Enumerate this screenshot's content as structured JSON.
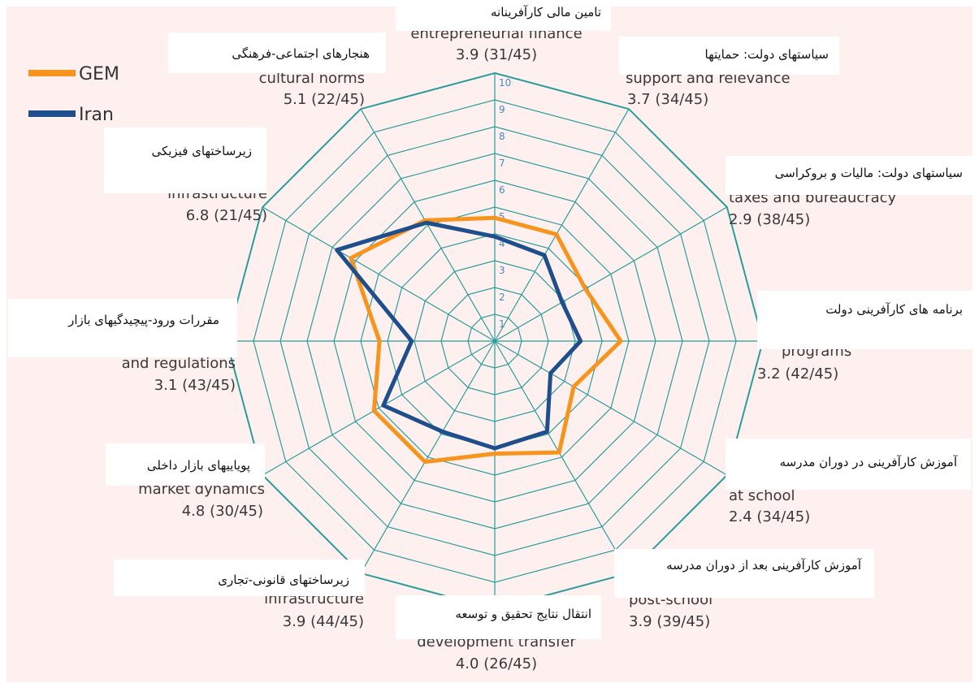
{
  "chart_data": {
    "type": "radar",
    "categories": [
      "entrepreneurial finance",
      "support and relevance",
      "taxes and bureaucracy",
      "programs",
      "at school",
      "post-school",
      "development transfer",
      "infrastructure",
      "market dynamics",
      "and regulations",
      "infrastructure",
      "cultural norms"
    ],
    "persian_labels": [
      "تامین مالی کارآفرینانه",
      "سیاستهای دولت: حمایتها",
      "سیاستهای دولت: مالیات و بروکراسی",
      "برنامه های کارآفرینی دولت",
      "آموزش کارآفرینی در دوران مدرسه",
      "آموزش کارآفرینی بعد از دوران مدرسه",
      "انتقال نتایج تحقیق و توسعه",
      "زیرساختهای قانونی-تجاری",
      "پویاییهای بازار داخلی",
      "مقررات ورود-پیچیدگیهای بازار",
      "زیرساختهای فیزیکی",
      "هنجارهای اجتماعی-فرهنگی"
    ],
    "series": [
      {
        "name": "GEM",
        "color": "#f7941d",
        "values": [
          4.6,
          4.6,
          3.9,
          4.7,
          3.4,
          4.8,
          4.2,
          5.2,
          5.2,
          4.3,
          6.2,
          5.2
        ]
      },
      {
        "name": "Iran",
        "color": "#1f4e8c",
        "values": [
          3.9,
          3.7,
          2.9,
          3.2,
          2.4,
          3.9,
          4.0,
          3.9,
          4.8,
          3.1,
          6.8,
          5.1
        ],
        "value_labels": [
          "3.9 (31/45)",
          "3.7 (34/45)",
          "2.9 (38/45)",
          "3.2 (42/45)",
          "2.4 (34/45)",
          "3.9 (39/45)",
          "4.0 (26/45)",
          "3.9 (44/45)",
          "4.8 (30/45)",
          "3.1 (43/45)",
          "6.8 (21/45)",
          "5.1 (22/45)"
        ]
      }
    ],
    "rlim": [
      0,
      10
    ],
    "rticks": [
      1,
      2,
      3,
      4,
      5,
      6,
      7,
      8,
      9,
      10
    ],
    "grid_color": "#2a9d9b",
    "legend": "upper left"
  }
}
